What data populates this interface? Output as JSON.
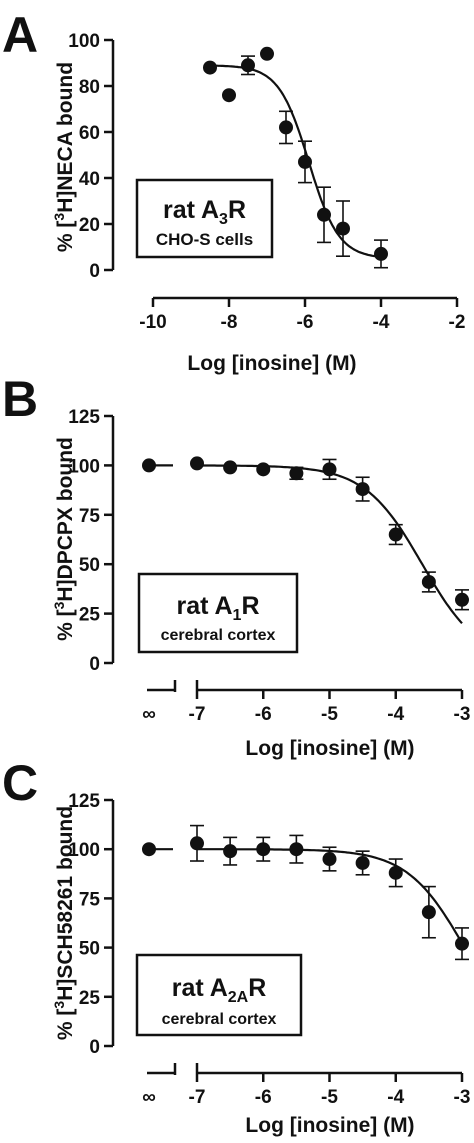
{
  "colors": {
    "ink": "#111111",
    "background": "#ffffff"
  },
  "chart_data": [
    {
      "panel": "A",
      "type": "scatter",
      "title": "",
      "xlabel": "Log [inosine] (M)",
      "ylabel_parts": {
        "pre": "% [",
        "sup": "3",
        "post": "H]NECA bound"
      },
      "xlim": [
        -10,
        -2
      ],
      "ylim": [
        0,
        100
      ],
      "xticks": [
        -10,
        -8,
        -6,
        -4,
        -2
      ],
      "yticks": [
        0,
        20,
        40,
        60,
        80,
        100
      ],
      "x_break": false,
      "box": {
        "line1_pre": "rat A",
        "line1_sub": "3",
        "line1_post": "R",
        "line2": "CHO-S cells"
      },
      "points": [
        {
          "x": -8.5,
          "y": 88,
          "err": 0
        },
        {
          "x": -8.0,
          "y": 76,
          "err": 0
        },
        {
          "x": -7.5,
          "y": 89,
          "err": 4
        },
        {
          "x": -7.0,
          "y": 94,
          "err": 0
        },
        {
          "x": -6.5,
          "y": 62,
          "err": 7
        },
        {
          "x": -6.0,
          "y": 47,
          "err": 9
        },
        {
          "x": -5.5,
          "y": 24,
          "err": 12
        },
        {
          "x": -5.0,
          "y": 18,
          "err": 12
        },
        {
          "x": -4.0,
          "y": 7,
          "err": 6
        }
      ],
      "fit": {
        "top": 89,
        "bottom": 5,
        "logEC50": -5.9,
        "hill": 1.1,
        "x_from": -8.5,
        "x_to": -4.0
      }
    },
    {
      "panel": "B",
      "type": "scatter",
      "title": "",
      "xlabel": "Log [inosine] (M)",
      "ylabel_parts": {
        "pre": "% [",
        "sup": "3",
        "post": "H]DPCPX bound"
      },
      "xlim": [
        -7,
        -3
      ],
      "ylim": [
        0,
        125
      ],
      "xticks": [
        -7,
        -6,
        -5,
        -4,
        -3
      ],
      "yticks": [
        0,
        25,
        50,
        75,
        100,
        125
      ],
      "x_break": true,
      "break_label": "∞",
      "box": {
        "line1_pre": "rat A",
        "line1_sub": "1",
        "line1_post": "R",
        "line2": "cerebral cortex"
      },
      "control_point": {
        "y": 100,
        "err": 0
      },
      "points": [
        {
          "x": -7.0,
          "y": 101,
          "err": 0
        },
        {
          "x": -6.5,
          "y": 99,
          "err": 0
        },
        {
          "x": -6.0,
          "y": 98,
          "err": 0
        },
        {
          "x": -5.5,
          "y": 96,
          "err": 3
        },
        {
          "x": -5.0,
          "y": 98,
          "err": 5
        },
        {
          "x": -4.5,
          "y": 88,
          "err": 6
        },
        {
          "x": -4.0,
          "y": 65,
          "err": 5
        },
        {
          "x": -3.5,
          "y": 41,
          "err": 5
        },
        {
          "x": -3.0,
          "y": 32,
          "err": 5
        }
      ],
      "fit": {
        "top": 100,
        "bottom": 0,
        "logEC50": -3.6,
        "hill": 1.0,
        "x_from": -7.0,
        "x_to": -3.0
      }
    },
    {
      "panel": "C",
      "type": "scatter",
      "title": "",
      "xlabel": "Log [inosine] (M)",
      "ylabel_parts": {
        "pre": "% [",
        "sup": "3",
        "post": "H]SCH58261 bound"
      },
      "xlim": [
        -7,
        -3
      ],
      "ylim": [
        0,
        125
      ],
      "xticks": [
        -7,
        -6,
        -5,
        -4,
        -3
      ],
      "yticks": [
        0,
        25,
        50,
        75,
        100,
        125
      ],
      "x_break": true,
      "break_label": "∞",
      "box": {
        "line1_pre": "rat A",
        "line1_sub": "2A",
        "line1_post": "R",
        "line2": "cerebral cortex"
      },
      "control_point": {
        "y": 100,
        "err": 0
      },
      "points": [
        {
          "x": -7.0,
          "y": 103,
          "err": 9
        },
        {
          "x": -6.5,
          "y": 99,
          "err": 7
        },
        {
          "x": -6.0,
          "y": 100,
          "err": 6
        },
        {
          "x": -5.5,
          "y": 100,
          "err": 7
        },
        {
          "x": -5.0,
          "y": 95,
          "err": 6
        },
        {
          "x": -4.5,
          "y": 93,
          "err": 6
        },
        {
          "x": -4.0,
          "y": 88,
          "err": 7
        },
        {
          "x": -3.5,
          "y": 68,
          "err": 13
        },
        {
          "x": -3.0,
          "y": 52,
          "err": 8
        }
      ],
      "fit": {
        "top": 100,
        "bottom": 0,
        "logEC50": -2.96,
        "hill": 1.0,
        "x_from": -7.0,
        "x_to": -3.0
      }
    }
  ]
}
